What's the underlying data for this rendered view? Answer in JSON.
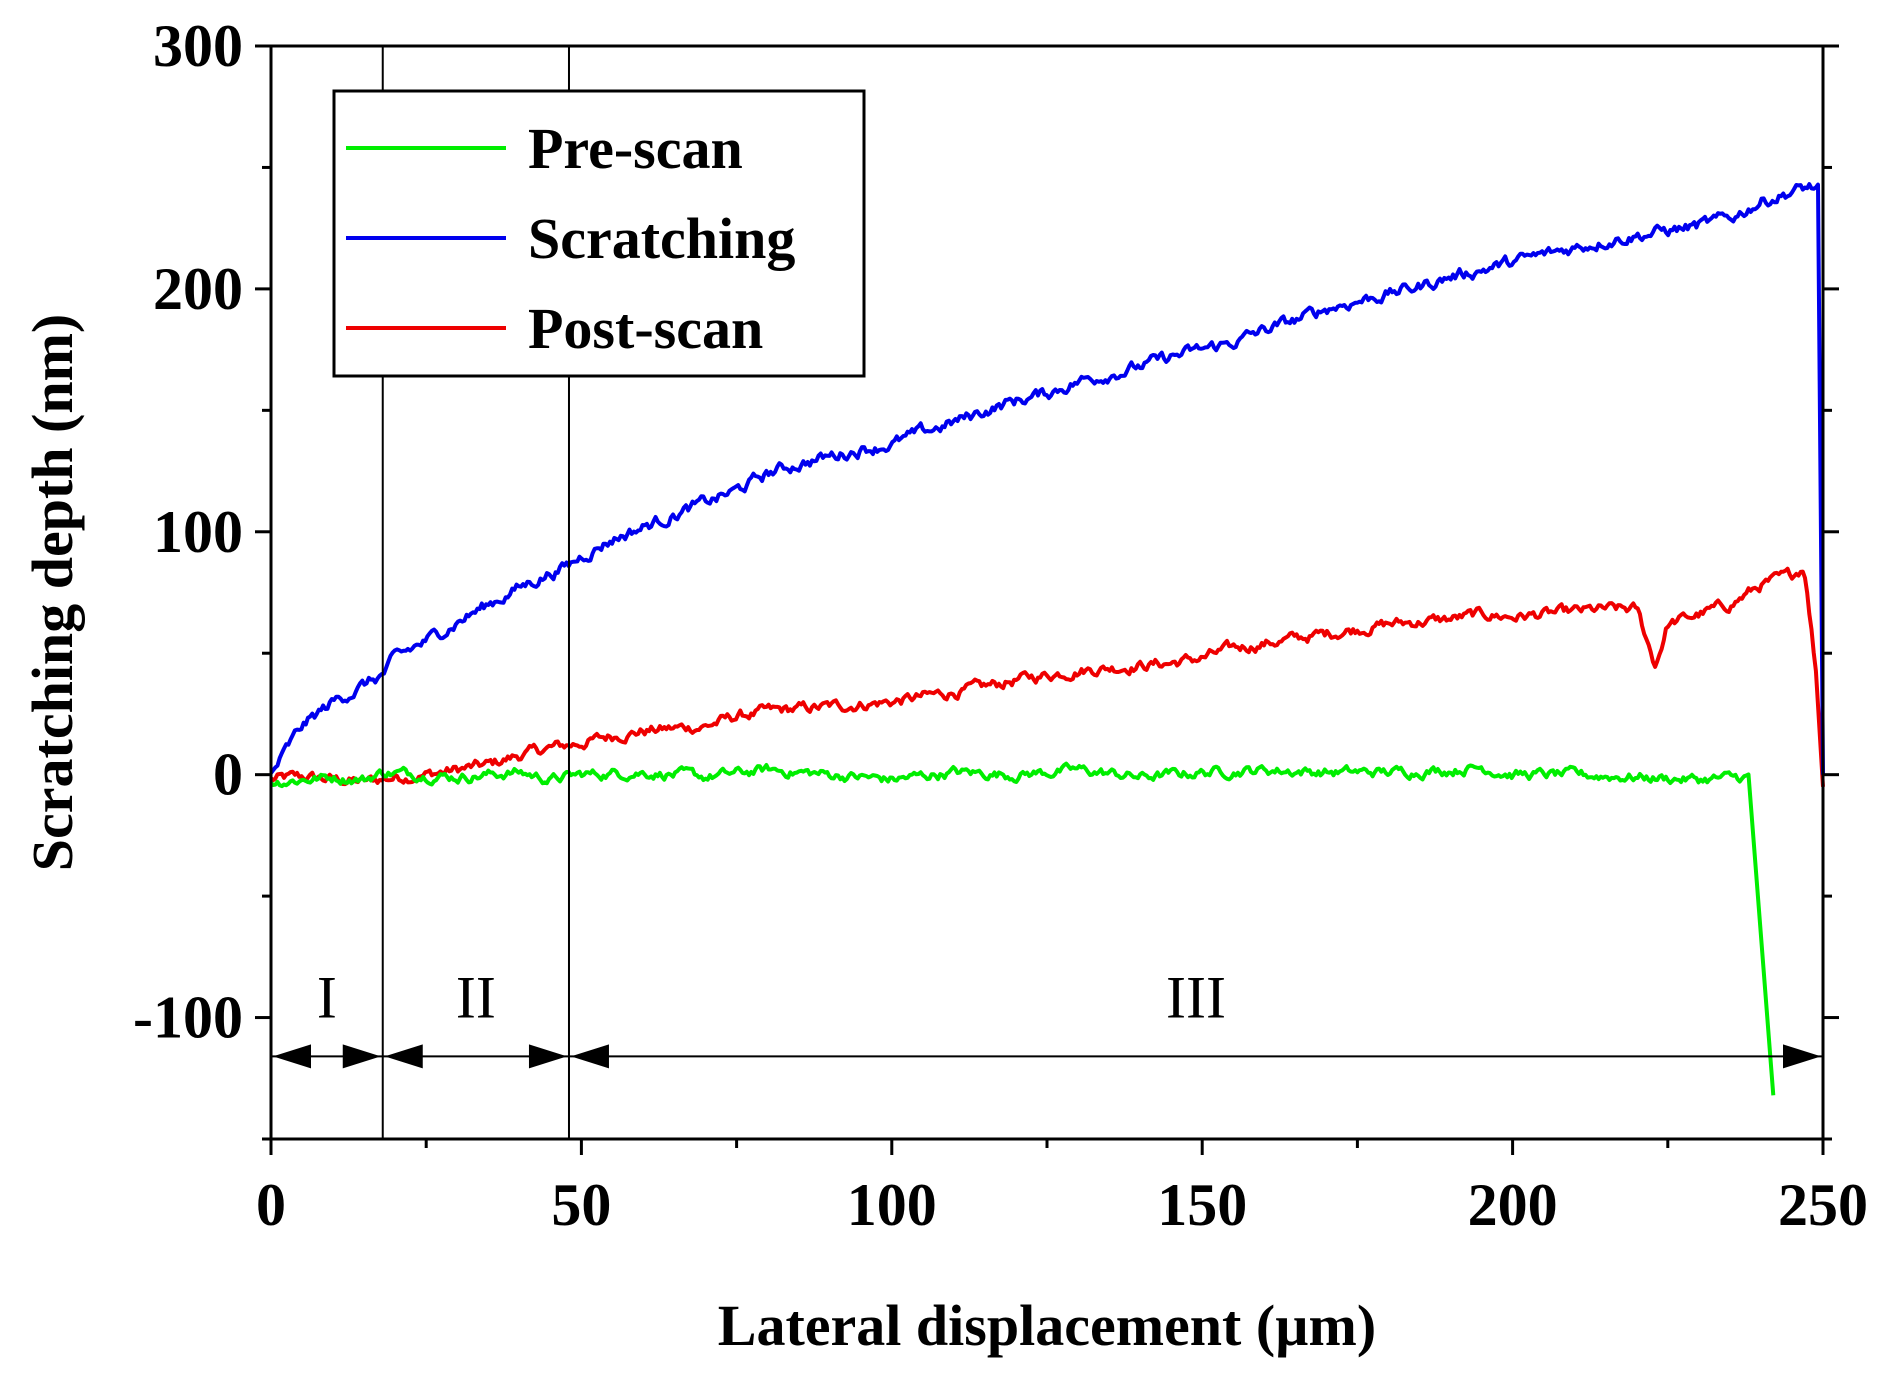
{
  "chart_data": {
    "type": "line",
    "title": "",
    "xlabel": "Lateral displacement (µm)",
    "ylabel": "Scratching depth (nm)",
    "xlim": [
      0,
      250
    ],
    "ylim": [
      -150,
      300
    ],
    "xticks": [
      0,
      50,
      100,
      150,
      200,
      250
    ],
    "xtick_labels": [
      "0",
      "50",
      "100",
      "150",
      "200",
      "250"
    ],
    "yticks": [
      -100,
      0,
      100,
      200,
      300
    ],
    "ytick_labels": [
      "-100",
      "0",
      "100",
      "200",
      "300"
    ],
    "grid": false,
    "legend": {
      "position": "top-left",
      "entries": [
        "Pre-scan",
        "Scratching",
        "Post-scan"
      ]
    },
    "series": [
      {
        "name": "Pre-scan",
        "color": "#00ee00",
        "x": [
          0,
          5,
          10,
          15,
          18,
          25,
          30,
          40,
          45,
          50,
          60,
          70,
          80,
          90,
          100,
          110,
          120,
          130,
          140,
          150,
          160,
          170,
          180,
          190,
          195,
          200,
          210,
          220,
          230,
          238,
          242
        ],
        "y": [
          -3,
          -2,
          -1,
          -2,
          1,
          0,
          -1,
          1,
          -2,
          0,
          1,
          -1,
          2,
          0,
          -2,
          1,
          0,
          2,
          -1,
          1,
          2,
          1,
          1,
          2,
          3,
          0,
          0,
          -1,
          -2,
          -1,
          -132
        ]
      },
      {
        "name": "Scratching",
        "color": "#0000ee",
        "x": [
          0,
          5,
          10,
          15,
          18,
          20,
          25,
          30,
          35,
          40,
          45,
          48,
          50,
          55,
          60,
          65,
          70,
          75,
          80,
          85,
          90,
          95,
          100,
          105,
          110,
          115,
          120,
          125,
          130,
          135,
          140,
          145,
          150,
          155,
          160,
          165,
          170,
          175,
          180,
          185,
          190,
          195,
          200,
          205,
          210,
          215,
          220,
          225,
          230,
          235,
          240,
          245,
          248,
          249.5,
          250
        ],
        "y": [
          0,
          20,
          30,
          37,
          41,
          48,
          55,
          63,
          70,
          77,
          83,
          86,
          90,
          97,
          102,
          107,
          112,
          117,
          124,
          128,
          131,
          134,
          136,
          141,
          145,
          150,
          154,
          157,
          162,
          165,
          168,
          172,
          175,
          178,
          183,
          187,
          192,
          195,
          198,
          201,
          205,
          208,
          211,
          214,
          217,
          220,
          222,
          224,
          226,
          229,
          236,
          240,
          242,
          240,
          0
        ]
      },
      {
        "name": "Post-scan",
        "color": "#ee0000",
        "x": [
          0,
          5,
          10,
          15,
          20,
          25,
          30,
          35,
          40,
          45,
          50,
          55,
          60,
          65,
          70,
          75,
          80,
          85,
          90,
          95,
          100,
          105,
          110,
          115,
          120,
          125,
          130,
          135,
          140,
          145,
          150,
          155,
          160,
          165,
          170,
          175,
          180,
          185,
          190,
          195,
          200,
          205,
          210,
          215,
          220,
          223,
          225,
          230,
          235,
          240,
          245,
          247,
          249,
          250
        ],
        "y": [
          -2,
          -1,
          -2,
          -3,
          -1,
          0,
          2,
          4,
          8,
          11,
          13,
          16,
          18,
          19,
          20,
          24,
          26,
          27,
          28,
          29,
          30,
          32,
          34,
          36,
          39,
          41,
          43,
          44,
          45,
          46,
          48,
          52,
          54,
          56,
          58,
          60,
          62,
          63,
          64,
          66,
          65,
          66,
          67,
          68,
          68,
          45,
          62,
          66,
          70,
          78,
          82,
          86,
          40,
          -5
        ]
      }
    ],
    "regions": [
      {
        "label": "I",
        "from": 0,
        "to": 18
      },
      {
        "label": "II",
        "from": 18,
        "to": 48
      },
      {
        "label": "III",
        "from": 48,
        "to": 250
      }
    ]
  }
}
